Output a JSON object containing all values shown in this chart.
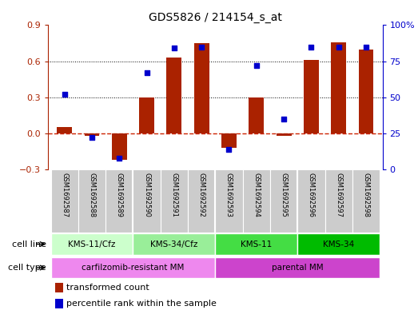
{
  "title": "GDS5826 / 214154_s_at",
  "samples": [
    "GSM1692587",
    "GSM1692588",
    "GSM1692589",
    "GSM1692590",
    "GSM1692591",
    "GSM1692592",
    "GSM1692593",
    "GSM1692594",
    "GSM1692595",
    "GSM1692596",
    "GSM1692597",
    "GSM1692598"
  ],
  "transformed_count": [
    0.05,
    -0.02,
    -0.22,
    0.3,
    0.63,
    0.75,
    -0.12,
    0.3,
    -0.02,
    0.61,
    0.76,
    0.7
  ],
  "percentile_rank": [
    0.52,
    0.22,
    0.08,
    0.67,
    0.84,
    0.85,
    0.14,
    0.72,
    0.35,
    0.85,
    0.85,
    0.85
  ],
  "bar_color": "#aa2200",
  "dot_color": "#0000cc",
  "dashed_line_color": "#cc2200",
  "ylim_left": [
    -0.3,
    0.9
  ],
  "yticks_left": [
    -0.3,
    0.0,
    0.3,
    0.6,
    0.9
  ],
  "ylim_right": [
    0.0,
    1.0
  ],
  "ytick_right_vals": [
    0.0,
    0.25,
    0.5,
    0.75,
    1.0
  ],
  "ytick_labels_right": [
    "0",
    "25",
    "50",
    "75",
    "100%"
  ],
  "cell_line_groups": [
    {
      "label": "KMS-11/Cfz",
      "start": 0,
      "end": 3,
      "color": "#ccffcc"
    },
    {
      "label": "KMS-34/Cfz",
      "start": 3,
      "end": 6,
      "color": "#99ee99"
    },
    {
      "label": "KMS-11",
      "start": 6,
      "end": 9,
      "color": "#44dd44"
    },
    {
      "label": "KMS-34",
      "start": 9,
      "end": 12,
      "color": "#00bb00"
    }
  ],
  "cell_type_groups": [
    {
      "label": "carfilzomib-resistant MM",
      "start": 0,
      "end": 6,
      "color": "#ee88ee"
    },
    {
      "label": "parental MM",
      "start": 6,
      "end": 12,
      "color": "#cc44cc"
    }
  ],
  "grid_dotted_color": "#000000",
  "bg_color": "#ffffff",
  "sample_box_color": "#cccccc",
  "bar_width": 0.55
}
